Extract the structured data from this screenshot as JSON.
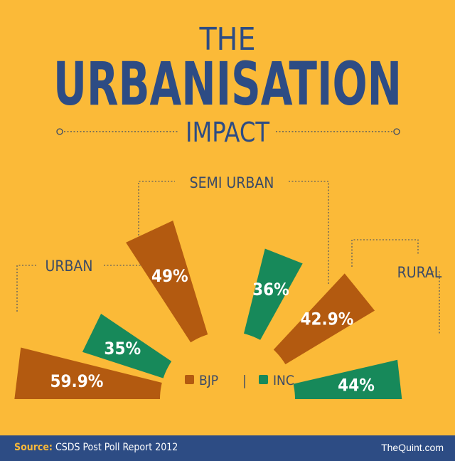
{
  "colors": {
    "background": "#FBBA38",
    "title": "#2D4C84",
    "bjp": "#B35A10",
    "inc": "#17895A",
    "footer": "#2D4C84",
    "label_dark": "#3B4A66"
  },
  "title": {
    "line1": "THE",
    "line2": "URBANISATION",
    "line3": "IMPACT"
  },
  "chart_data": {
    "type": "bar",
    "title": "THE URBANISATION IMPACT",
    "categories": [
      "URBAN",
      "SEMI URBAN",
      "RURAL"
    ],
    "series": [
      {
        "name": "BJP",
        "values": [
          59.9,
          49,
          42.9
        ],
        "labels": [
          "59.9%",
          "49%",
          "42.9%"
        ],
        "color": "#B35A10"
      },
      {
        "name": "INC",
        "values": [
          35,
          36,
          44
        ],
        "labels": [
          "35%",
          "36%",
          "44%"
        ],
        "color": "#17895A"
      }
    ],
    "unit": "%",
    "legend": {
      "items": [
        "BJP",
        "INC"
      ],
      "separator": "|",
      "placement": "center"
    }
  },
  "footer": {
    "source_label": "Source:",
    "source_text": "CSDS Post Poll Report 2012",
    "brand": "TheQuint.com"
  }
}
